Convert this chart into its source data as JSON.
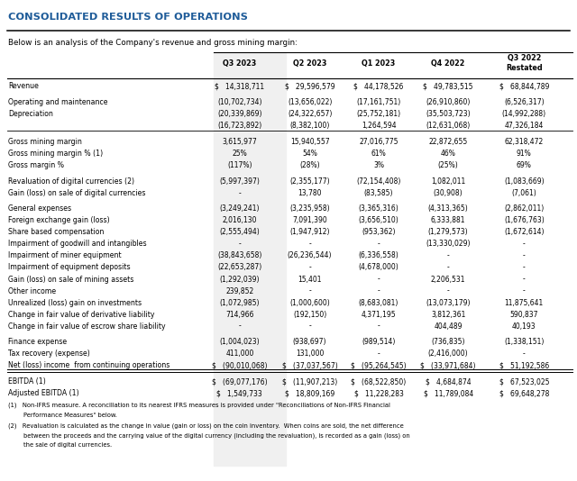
{
  "title": "CONSOLIDATED RESULTS OF OPERATIONS",
  "subtitle": "Below is an analysis of the Company's revenue and gross mining margin:",
  "columns": [
    "",
    "Q3 2023",
    "Q2 2023",
    "Q1 2023",
    "Q4 2022",
    "Q3 2022\nRestated"
  ],
  "rows": [
    {
      "label": "Revenue",
      "values": [
        "$   14,318,711",
        "$   29,596,579",
        "$   44,178,526",
        "$   49,783,515",
        "$   68,844,789"
      ],
      "separator_above": false,
      "separator_below": false,
      "double_below": false
    },
    {
      "label": "Operating and maintenance",
      "values": [
        "(10,702,734)",
        "(13,656,022)",
        "(17,161,751)",
        "(26,910,860)",
        "(6,526,317)"
      ],
      "separator_above": true,
      "separator_below": false,
      "double_below": false
    },
    {
      "label": "Depreciation",
      "values": [
        "(20,339,869)",
        "(24,322,657)",
        "(25,752,181)",
        "(35,503,723)",
        "(14,992,288)"
      ],
      "separator_above": false,
      "separator_below": false,
      "double_below": false
    },
    {
      "label": "",
      "values": [
        "(16,723,892)",
        "(8,382,100)",
        "1,264,594",
        "(12,631,068)",
        "47,326,184"
      ],
      "separator_above": false,
      "separator_below": true,
      "double_below": false
    },
    {
      "label": "Gross mining margin",
      "values": [
        "3,615,977",
        "15,940,557",
        "27,016,775",
        "22,872,655",
        "62,318,472"
      ],
      "separator_above": true,
      "separator_below": false,
      "double_below": false
    },
    {
      "label": "Gross mining margin % (1)",
      "values": [
        "25%",
        "54%",
        "61%",
        "46%",
        "91%"
      ],
      "separator_above": false,
      "separator_below": false,
      "double_below": false
    },
    {
      "label": "Gross margin %",
      "values": [
        "(117%)",
        "(28%)",
        "3%",
        "(25%)",
        "69%"
      ],
      "separator_above": false,
      "separator_below": false,
      "double_below": false
    },
    {
      "label": "Revaluation of digital currencies (2)",
      "values": [
        "(5,997,397)",
        "(2,355,177)",
        "(72,154,408)",
        "1,082,011",
        "(1,083,669)"
      ],
      "separator_above": true,
      "separator_below": false,
      "double_below": false
    },
    {
      "label": "Gain (loss) on sale of digital currencies",
      "values": [
        "-",
        "13,780",
        "(83,585)",
        "(30,908)",
        "(7,061)"
      ],
      "separator_above": false,
      "separator_below": false,
      "double_below": false
    },
    {
      "label": "General expenses",
      "values": [
        "(3,249,241)",
        "(3,235,958)",
        "(3,365,316)",
        "(4,313,365)",
        "(2,862,011)"
      ],
      "separator_above": true,
      "separator_below": false,
      "double_below": false
    },
    {
      "label": "Foreign exchange gain (loss)",
      "values": [
        "2,016,130",
        "7,091,390",
        "(3,656,510)",
        "6,333,881",
        "(1,676,763)"
      ],
      "separator_above": false,
      "separator_below": false,
      "double_below": false
    },
    {
      "label": "Share based compensation",
      "values": [
        "(2,555,494)",
        "(1,947,912)",
        "(953,362)",
        "(1,279,573)",
        "(1,672,614)"
      ],
      "separator_above": false,
      "separator_below": false,
      "double_below": false
    },
    {
      "label": "Impairment of goodwill and intangibles",
      "values": [
        "-",
        "-",
        "-",
        "(13,330,029)",
        "-"
      ],
      "separator_above": false,
      "separator_below": false,
      "double_below": false
    },
    {
      "label": "Impairment of miner equipment",
      "values": [
        "(38,843,658)",
        "(26,236,544)",
        "(6,336,558)",
        "-",
        "-"
      ],
      "separator_above": false,
      "separator_below": false,
      "double_below": false
    },
    {
      "label": "Impairment of equipment deposits",
      "values": [
        "(22,653,287)",
        "-",
        "(4,678,000)",
        "-",
        "-"
      ],
      "separator_above": false,
      "separator_below": false,
      "double_below": false
    },
    {
      "label": "Gain (loss) on sale of mining assets",
      "values": [
        "(1,292,039)",
        "15,401",
        "-",
        "2,206,531",
        "-"
      ],
      "separator_above": false,
      "separator_below": false,
      "double_below": false
    },
    {
      "label": "Other income",
      "values": [
        "239,852",
        "-",
        "-",
        "-",
        "-"
      ],
      "separator_above": false,
      "separator_below": false,
      "double_below": false
    },
    {
      "label": "Unrealized (loss) gain on investments",
      "values": [
        "(1,072,985)",
        "(1,000,600)",
        "(8,683,081)",
        "(13,073,179)",
        "11,875,641"
      ],
      "separator_above": false,
      "separator_below": false,
      "double_below": false
    },
    {
      "label": "Change in fair value of derivative liability",
      "values": [
        "714,966",
        "(192,150)",
        "4,371,195",
        "3,812,361",
        "590,837"
      ],
      "separator_above": false,
      "separator_below": false,
      "double_below": false
    },
    {
      "label": "Change in fair value of escrow share liability",
      "values": [
        "-",
        "-",
        "-",
        "404,489",
        "40,193"
      ],
      "separator_above": false,
      "separator_below": false,
      "double_below": false
    },
    {
      "label": "Finance expense",
      "values": [
        "(1,004,023)",
        "(938,697)",
        "(989,514)",
        "(736,835)",
        "(1,338,151)"
      ],
      "separator_above": true,
      "separator_below": false,
      "double_below": false
    },
    {
      "label": "Tax recovery (expense)",
      "values": [
        "411,000",
        "131,000",
        "-",
        "(2,416,000)",
        "-"
      ],
      "separator_above": false,
      "separator_below": false,
      "double_below": false
    },
    {
      "label": "Net (loss) income  from continuing operations",
      "values": [
        "$   (90,010,068)",
        "$   (37,037,567)",
        "$   (95,264,545)",
        "$   (33,971,684)",
        "$   51,192,586"
      ],
      "separator_above": false,
      "separator_below": false,
      "double_below": true
    },
    {
      "label": "EBITDA (1)",
      "values": [
        "$   (69,077,176)",
        "$   (11,907,213)",
        "$   (68,522,850)",
        "$   4,684,874",
        "$   67,523,025"
      ],
      "separator_above": true,
      "separator_below": false,
      "double_below": false
    },
    {
      "label": "Adjusted EBITDA (1)",
      "values": [
        "$   1,549,733",
        "$   18,809,169",
        "$   11,228,283",
        "$   11,789,084",
        "$   69,648,278"
      ],
      "separator_above": false,
      "separator_below": false,
      "double_below": false
    }
  ],
  "footnotes": [
    "(1)   Non-IFRS measure. A reconciliation to its nearest IFRS measures is provided under \"Reconciliations of Non-IFRS Financial",
    "        Performance Measures\" below.",
    "(2)   Revaluation is calculated as the change in value (gain or loss) on the coin inventory.  When coins are sold, the net difference",
    "        between the proceeds and the carrying value of the digital currency (including the revaluation), is recorded as a gain (loss) on",
    "        the sale of digital currencies."
  ],
  "title_color": "#1F5C99",
  "header_bg_color": "#E0E0E0",
  "col1_bg_color": "#F0F0F0",
  "bg_color": "#FFFFFF",
  "line_color": "#000000"
}
